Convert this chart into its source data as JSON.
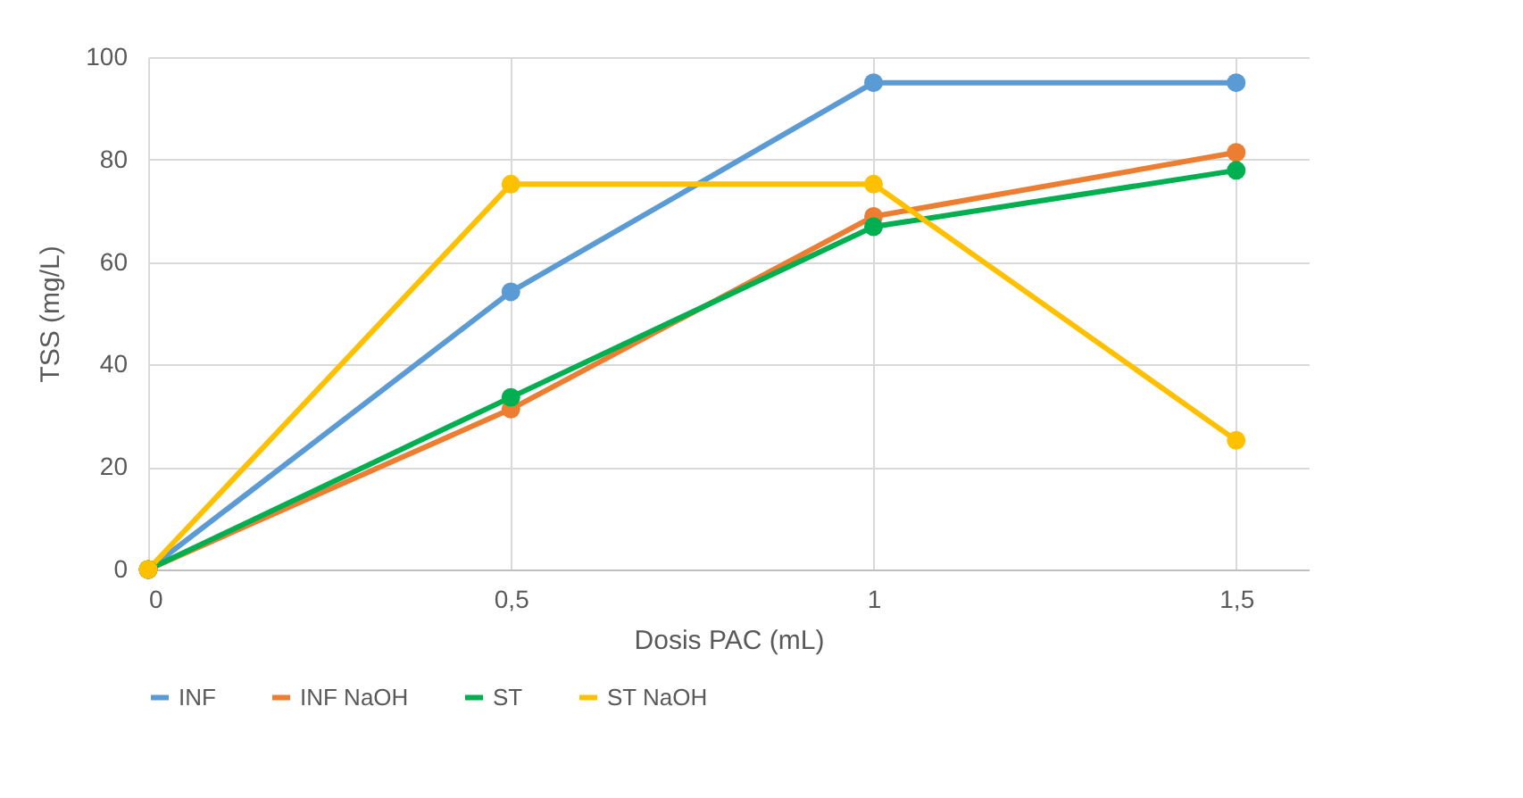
{
  "chart_data": {
    "type": "line",
    "xlabel": "Dosis PAC (mL)",
    "ylabel": "TSS (mg/L)",
    "x": [
      0,
      0.5,
      1,
      1.5
    ],
    "series": [
      {
        "name": "INF",
        "color": "#5b9bd5",
        "values": [
          0,
          54.2,
          95,
          95
        ]
      },
      {
        "name": "INF NaOH",
        "color": "#ed7d31",
        "values": [
          0,
          31.3,
          68.9,
          81.4
        ]
      },
      {
        "name": "ST",
        "color": "#00b050",
        "values": [
          0,
          33.6,
          66.9,
          77.9
        ]
      },
      {
        "name": "ST NaOH",
        "color": "#ffc000",
        "values": [
          0,
          75.2,
          75.2,
          25.2
        ]
      }
    ],
    "xlim": [
      0,
      1.6
    ],
    "xticks": [
      0,
      {
        "value": 0.5,
        "label": "0,5"
      },
      1,
      {
        "value": 1.5,
        "label": "1,5"
      }
    ],
    "ylim": [
      0,
      100
    ],
    "yticks": [
      0,
      20,
      40,
      60,
      80,
      100
    ],
    "grid": true,
    "legend": "bottom",
    "marker": "circle",
    "line_style": "solid"
  }
}
